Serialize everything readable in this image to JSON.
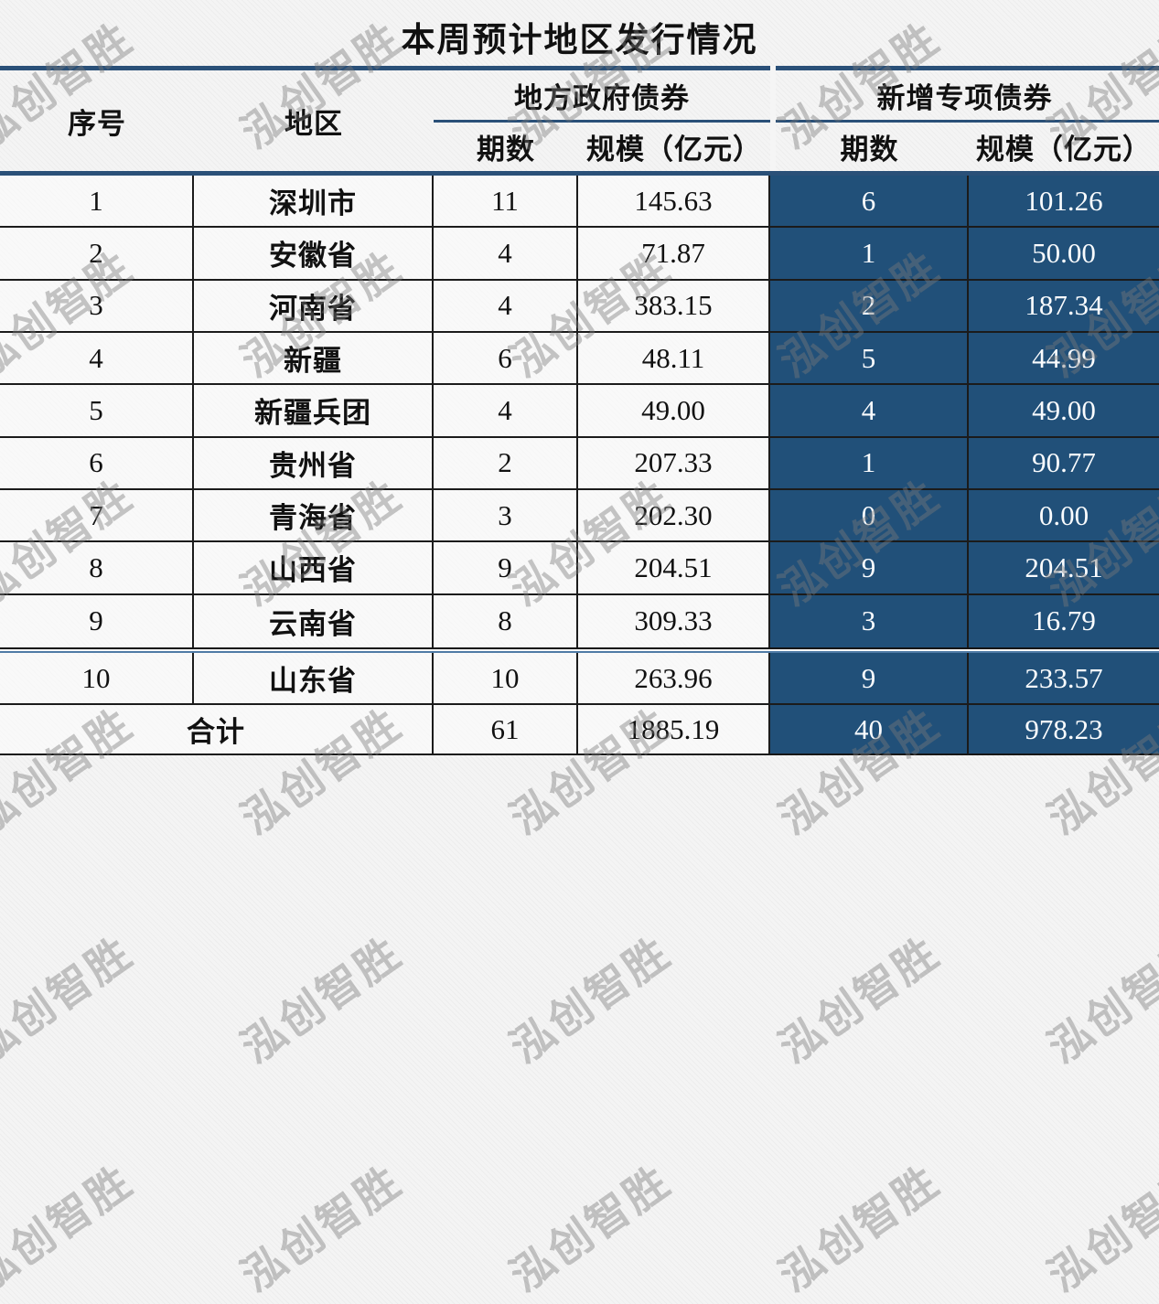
{
  "title": "本周预计地区发行情况",
  "watermark": {
    "text": "泓创智胜"
  },
  "colors": {
    "header_rule_blue": "#2A5078",
    "special_cell_blue": "#215079",
    "grid_line_black": "#1B1B1B",
    "divider_lower_blue": "#4F7BA6"
  },
  "table": {
    "headers": {
      "no": "序号",
      "region": "地区"
    },
    "groups": [
      {
        "label": "地方政府债券",
        "sub": [
          "期数",
          "规模（亿元）"
        ]
      },
      {
        "label": "新增专项债券",
        "sub": [
          "期数",
          "规模（亿元）"
        ]
      }
    ],
    "rows": [
      {
        "no": "1",
        "region": "深圳市",
        "lg_periods": "11",
        "lg_scale": "145.63",
        "sp_periods": "6",
        "sp_scale": "101.26"
      },
      {
        "no": "2",
        "region": "安徽省",
        "lg_periods": "4",
        "lg_scale": "71.87",
        "sp_periods": "1",
        "sp_scale": "50.00"
      },
      {
        "no": "3",
        "region": "河南省",
        "lg_periods": "4",
        "lg_scale": "383.15",
        "sp_periods": "2",
        "sp_scale": "187.34"
      },
      {
        "no": "4",
        "region": "新疆",
        "lg_periods": "6",
        "lg_scale": "48.11",
        "sp_periods": "5",
        "sp_scale": "44.99"
      },
      {
        "no": "5",
        "region": "新疆兵团",
        "lg_periods": "4",
        "lg_scale": "49.00",
        "sp_periods": "4",
        "sp_scale": "49.00"
      },
      {
        "no": "6",
        "region": "贵州省",
        "lg_periods": "2",
        "lg_scale": "207.33",
        "sp_periods": "1",
        "sp_scale": "90.77"
      },
      {
        "no": "7",
        "region": "青海省",
        "lg_periods": "3",
        "lg_scale": "202.30",
        "sp_periods": "0",
        "sp_scale": "0.00"
      },
      {
        "no": "8",
        "region": "山西省",
        "lg_periods": "9",
        "lg_scale": "204.51",
        "sp_periods": "9",
        "sp_scale": "204.51"
      },
      {
        "no": "9",
        "region": "云南省",
        "lg_periods": "8",
        "lg_scale": "309.33",
        "sp_periods": "3",
        "sp_scale": "16.79"
      },
      {
        "no": "10",
        "region": "山东省",
        "lg_periods": "10",
        "lg_scale": "263.96",
        "sp_periods": "9",
        "sp_scale": "233.57"
      }
    ],
    "total": {
      "label": "合计",
      "lg_periods": "61",
      "lg_scale": "1885.19",
      "sp_periods": "40",
      "sp_scale": "978.23"
    }
  }
}
